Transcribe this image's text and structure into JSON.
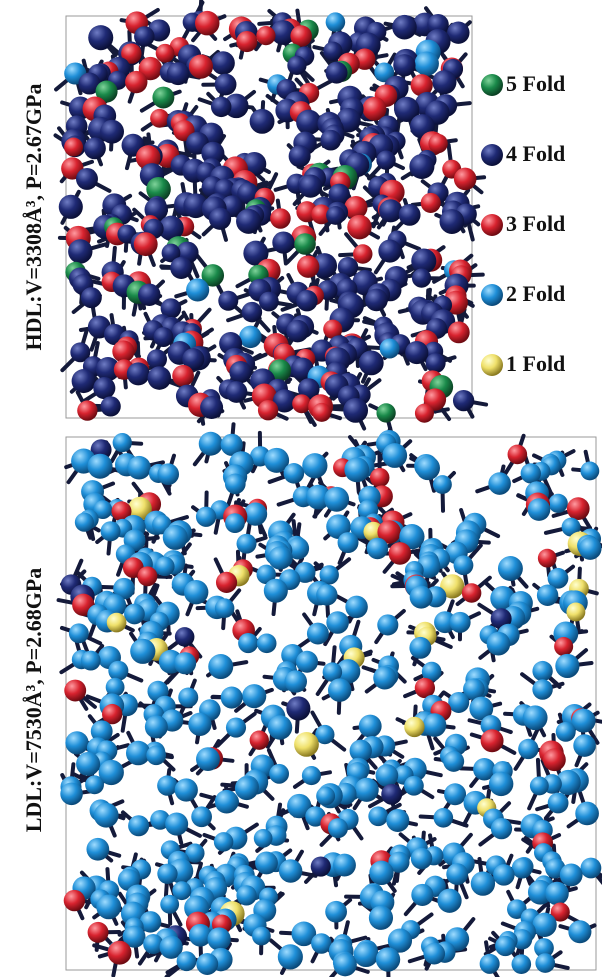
{
  "panels": [
    {
      "label": "HDL:V=3308Å³, P=2.67GPa"
    },
    {
      "label": "LDL:V=7530Å³, P=2.68GPa"
    }
  ],
  "legend": [
    {
      "label": "5 Fold"
    },
    {
      "label": "4 Fold"
    },
    {
      "label": "3 Fold"
    },
    {
      "label": "2 Fold"
    },
    {
      "label": "1 Fold"
    }
  ]
}
